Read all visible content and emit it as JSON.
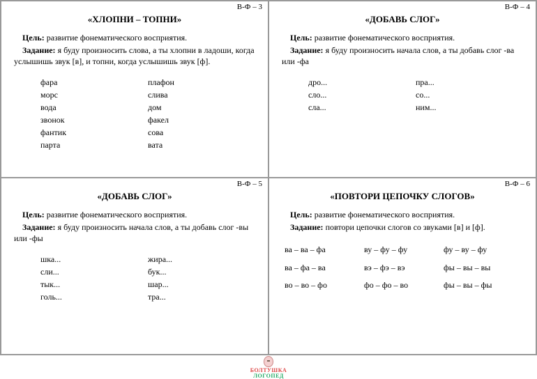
{
  "cards": [
    {
      "code": "В-Ф – 3",
      "title": "«ХЛОПНИ – ТОПНИ»",
      "goal_label": "Цель:",
      "goal": " развитие фонематического восприятия.",
      "task_label": "Задание:",
      "task": " я буду произносить слова, а ты хлопни в ладоши, когда услышишь звук [в], и топни, когда услышишь звук [ф].",
      "columns": [
        [
          "фара",
          "морс",
          "вода",
          "звонок",
          "фантик",
          "парта"
        ],
        [
          "плафон",
          "слива",
          "дом",
          "факел",
          "сова",
          "вата"
        ]
      ]
    },
    {
      "code": "В-Ф – 4",
      "title": "«ДОБАВЬ СЛОГ»",
      "goal_label": "Цель:",
      "goal": " развитие фонематического восприятия.",
      "task_label": "Задание:",
      "task": " я буду произносить начала слов, а ты добавь слог -ва или -фа",
      "columns": [
        [
          "дро...",
          "сло...",
          "сла..."
        ],
        [
          "пра...",
          "со...",
          "ним..."
        ]
      ]
    },
    {
      "code": "В-Ф – 5",
      "title": "«ДОБАВЬ СЛОГ»",
      "goal_label": "Цель:",
      "goal": " развитие фонематического восприятия.",
      "task_label": "Задание:",
      "task": " я буду произносить начала слов, а ты добавь слог -вы или -фы",
      "columns": [
        [
          "шка...",
          "сли...",
          "тык...",
          "голь..."
        ],
        [
          "жира...",
          "бук...",
          "шар...",
          "тра..."
        ]
      ]
    },
    {
      "code": "В-Ф – 6",
      "title": "«ПОВТОРИ ЦЕПОЧКУ СЛОГОВ»",
      "goal_label": "Цель:",
      "goal": " развитие фонематического восприятия.",
      "task_label": "Задание:",
      "task": " повтори цепочки слогов со звуками [в] и [ф].",
      "chains": [
        [
          "ва – ва – фа",
          "ва – фа – ва",
          "во – во – фо"
        ],
        [
          "ву – фу – фу",
          "вэ – фэ – вэ",
          "фо – фо – во"
        ],
        [
          "фу – ву – фу",
          "фы – вы – вы",
          "фы – вы – фы"
        ]
      ]
    }
  ],
  "logo": {
    "line1": "БОЛТУШКА",
    "line2": "ЛОГОПЕД"
  }
}
